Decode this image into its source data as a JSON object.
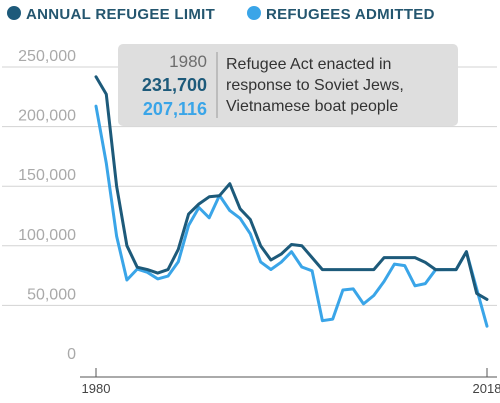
{
  "legend": {
    "limit_label": "ANNUAL REFUGEE LIMIT",
    "admitted_label": "REFUGEES ADMITTED"
  },
  "annotation": {
    "year": "1980",
    "limit_value": "231,700",
    "admitted_value": "207,116",
    "note_line1": "Refugee Act enacted in",
    "note_line2": "response to Soviet Jews,",
    "note_line3": "Vietnamese boat people"
  },
  "colors": {
    "limit": "#1d5a7a",
    "admitted": "#3aa5e8",
    "annotation_bg": "#dedede",
    "grid": "#d3d3d3"
  },
  "chart_data": {
    "type": "line",
    "xlim": [
      1980,
      2018
    ],
    "ylim": [
      0,
      250000
    ],
    "y_ticks": [
      {
        "value": 0,
        "label": "0"
      },
      {
        "value": 50000,
        "label": "50,000"
      },
      {
        "value": 100000,
        "label": "100,000"
      },
      {
        "value": 150000,
        "label": "150,000"
      },
      {
        "value": 200000,
        "label": "200,000"
      },
      {
        "value": 250000,
        "label": "250,000"
      }
    ],
    "x_ticks": [
      {
        "value": 1980,
        "label": "1980"
      },
      {
        "value": 2018,
        "label": "2018"
      }
    ],
    "grid": true,
    "legend_position": "top-left",
    "x": [
      1980,
      1981,
      1982,
      1983,
      1984,
      1985,
      1986,
      1987,
      1988,
      1989,
      1990,
      1991,
      1992,
      1993,
      1994,
      1995,
      1996,
      1997,
      1998,
      1999,
      2000,
      2001,
      2002,
      2003,
      2004,
      2005,
      2006,
      2007,
      2008,
      2009,
      2010,
      2011,
      2012,
      2013,
      2014,
      2015,
      2016,
      2017,
      2018
    ],
    "series": [
      {
        "name": "ANNUAL REFUGEE LIMIT",
        "color": "#1d5a7a",
        "values": [
          231700,
          217000,
          140000,
          90000,
          72000,
          70000,
          67000,
          70000,
          87000,
          116500,
          125000,
          131000,
          132000,
          142000,
          121000,
          112000,
          90000,
          78000,
          83000,
          91000,
          90000,
          80000,
          70000,
          70000,
          70000,
          70000,
          70000,
          70000,
          80000,
          80000,
          80000,
          80000,
          76000,
          70000,
          70000,
          70000,
          85000,
          50000,
          45000
        ]
      },
      {
        "name": "REFUGEES ADMITTED",
        "color": "#3aa5e8",
        "values": [
          207116,
          159252,
          98096,
          61218,
          70393,
          67704,
          62146,
          64528,
          76483,
          107070,
          122066,
          113389,
          132173,
          119448,
          112981,
          99974,
          76403,
          70085,
          76181,
          85010,
          72143,
          68920,
          27131,
          28422,
          52868,
          53738,
          41150,
          48218,
          60108,
          74602,
          73311,
          56384,
          58238,
          69909,
          69987,
          69933,
          84989,
          53716,
          22491
        ]
      }
    ]
  }
}
